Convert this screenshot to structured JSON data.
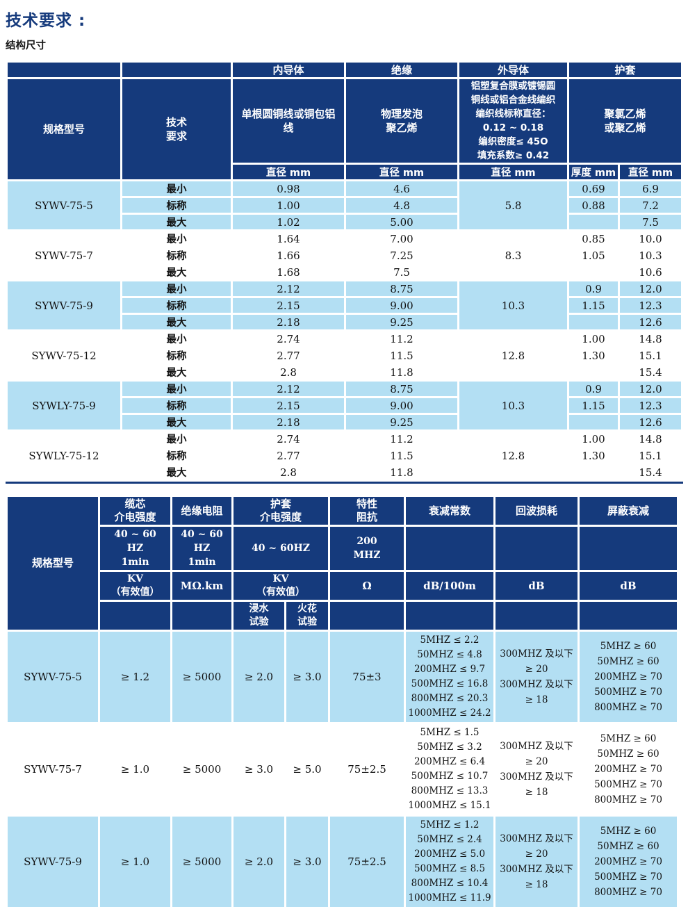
{
  "page": {
    "title": "技术要求 :",
    "subtitle": "结构尺寸"
  },
  "colors": {
    "navy": "#153a7c",
    "light_blue": "#b3dff3",
    "page_bg": "#ffffff"
  },
  "table1": {
    "header": {
      "spec_label": "规格型号",
      "tech_label": [
        "技术",
        "要求"
      ],
      "groups": [
        "内导体",
        "绝缘",
        "外导体",
        "护套"
      ],
      "inner_desc": [
        "单根圆铜线或铜包铝",
        "线"
      ],
      "insulation_desc": [
        "物理发泡",
        "聚乙烯"
      ],
      "outer_desc": [
        "铝塑复合膜或镀锡圆",
        "铜线或铝合金线编织",
        "编织线标称直径：",
        "0.12 ~ 0.18",
        "编织密度≤ 45O",
        "填充系数≥ 0.42"
      ],
      "sheath_desc": [
        "聚氯乙烯",
        "或聚乙烯"
      ],
      "units": {
        "inner": "直径 mm",
        "insulation": "直径 mm",
        "outer": "直径 mm",
        "thickness": "厚度 mm",
        "diameter": "直径 mm"
      }
    },
    "rows": [
      {
        "model": "SYWV-75-5",
        "shade": true,
        "outer": "5.8",
        "subrows": [
          {
            "label": "最小",
            "inner": "0.98",
            "ins": "4.6",
            "thick": "0.69",
            "dia": "6.9"
          },
          {
            "label": "标称",
            "inner": "1.00",
            "ins": "4.8",
            "thick": "0.88",
            "dia": "7.2"
          },
          {
            "label": "最大",
            "inner": "1.02",
            "ins": "5.00",
            "thick": "",
            "dia": "7.5"
          }
        ]
      },
      {
        "model": "SYWV-75-7",
        "shade": false,
        "outer": "8.3",
        "subrows": [
          {
            "label": "最小",
            "inner": "1.64",
            "ins": "7.00",
            "thick": "0.85",
            "dia": "10.0"
          },
          {
            "label": "标称",
            "inner": "1.66",
            "ins": "7.25",
            "thick": "1.05",
            "dia": "10.3"
          },
          {
            "label": "最大",
            "inner": "1.68",
            "ins": "7.5",
            "thick": "",
            "dia": "10.6"
          }
        ]
      },
      {
        "model": "SYWV-75-9",
        "shade": true,
        "outer": "10.3",
        "subrows": [
          {
            "label": "最小",
            "inner": "2.12",
            "ins": "8.75",
            "thick": "0.9",
            "dia": "12.0"
          },
          {
            "label": "标称",
            "inner": "2.15",
            "ins": "9.00",
            "thick": "1.15",
            "dia": "12.3"
          },
          {
            "label": "最大",
            "inner": "2.18",
            "ins": "9.25",
            "thick": "",
            "dia": "12.6"
          }
        ]
      },
      {
        "model": "SYWV-75-12",
        "shade": false,
        "outer": "12.8",
        "subrows": [
          {
            "label": "最小",
            "inner": "2.74",
            "ins": "11.2",
            "thick": "1.00",
            "dia": "14.8"
          },
          {
            "label": "标称",
            "inner": "2.77",
            "ins": "11.5",
            "thick": "1.30",
            "dia": "15.1"
          },
          {
            "label": "最大",
            "inner": "2.8",
            "ins": "11.8",
            "thick": "",
            "dia": "15.4"
          }
        ]
      },
      {
        "model": "SYWLY-75-9",
        "shade": true,
        "outer": "10.3",
        "subrows": [
          {
            "label": "最小",
            "inner": "2.12",
            "ins": "8.75",
            "thick": "0.9",
            "dia": "12.0"
          },
          {
            "label": "标称",
            "inner": "2.15",
            "ins": "9.00",
            "thick": "1.15",
            "dia": "12.3"
          },
          {
            "label": "最大",
            "inner": "2.18",
            "ins": "9.25",
            "thick": "",
            "dia": "12.6"
          }
        ]
      },
      {
        "model": "SYWLY-75-12",
        "shade": false,
        "outer": "12.8",
        "subrows": [
          {
            "label": "最小",
            "inner": "2.74",
            "ins": "11.2",
            "thick": "1.00",
            "dia": "14.8"
          },
          {
            "label": "标称",
            "inner": "2.77",
            "ins": "11.5",
            "thick": "1.30",
            "dia": "15.1"
          },
          {
            "label": "最大",
            "inner": "2.8",
            "ins": "11.8",
            "thick": "",
            "dia": "15.4"
          }
        ]
      }
    ]
  },
  "table2": {
    "header": {
      "spec_label": "规格型号",
      "core_strength": {
        "l1": [
          "缆芯",
          "介电强度"
        ],
        "l2": [
          "40 ~ 60",
          "HZ",
          "1min"
        ],
        "l3": [
          "KV",
          "（有效值）"
        ]
      },
      "ins_resistance": {
        "l1": "绝缘电阻",
        "l2": [
          "40 ~ 60",
          "HZ",
          "1min"
        ],
        "l3": "MΩ.km"
      },
      "sheath_strength": {
        "l1": [
          "护套",
          "介电强度"
        ],
        "l2": "40 ~ 60HZ",
        "l3": [
          "KV",
          "（有效值）"
        ],
        "sub_immersion": [
          "浸水",
          "试验"
        ],
        "sub_spark": [
          "火花",
          "试验"
        ]
      },
      "impedance": {
        "l1": [
          "特性",
          "阻抗"
        ],
        "l2": [
          "200",
          "MHZ"
        ],
        "l3": "Ω"
      },
      "attenuation": {
        "l1": "衰减常数",
        "l3": "dB/100m"
      },
      "return_loss": {
        "l1": "回波损耗",
        "l3": "dB"
      },
      "shield": {
        "l1": "屏蔽衰减",
        "l3": "dB"
      }
    },
    "rows": [
      {
        "model": "SYWV-75-5",
        "shade": true,
        "core": "≥ 1.2",
        "ir": "≥ 5000",
        "water": "≥ 2.0",
        "spark": "≥ 3.0",
        "z": "75±3",
        "att": [
          "5MHZ ≤ 2.2",
          "50MHZ ≤ 4.8",
          "200MHZ ≤ 9.7",
          "500MHZ ≤ 16.8",
          "800MHZ ≤ 20.3",
          "1000MHZ ≤ 24.2"
        ],
        "rl": [
          "300MHZ 及以下",
          "≥ 20",
          "300MHZ 及以下",
          "≥ 18"
        ],
        "shield": [
          "5MHZ ≥ 60",
          "50MHZ ≥ 60",
          "200MHZ ≥ 70",
          "500MHZ ≥ 70",
          "800MHZ ≥ 70"
        ]
      },
      {
        "model": "SYWV-75-7",
        "shade": false,
        "core": "≥ 1.0",
        "ir": "≥ 5000",
        "water": "≥ 3.0",
        "spark": "≥ 5.0",
        "z": "75±2.5",
        "att": [
          "5MHZ ≤ 1.5",
          "50MHZ ≤ 3.2",
          "200MHZ ≤ 6.4",
          "500MHZ ≤ 10.7",
          "800MHZ ≤ 13.3",
          "1000MHZ ≤ 15.1"
        ],
        "rl": [
          "300MHZ 及以下",
          "≥ 20",
          "300MHZ 及以下",
          "≥ 18"
        ],
        "shield": [
          "5MHZ ≥ 60",
          "50MHZ ≥ 60",
          "200MHZ ≥ 70",
          "500MHZ ≥ 70",
          "800MHZ ≥ 70"
        ]
      },
      {
        "model": "SYWV-75-9",
        "shade": true,
        "core": "≥ 1.0",
        "ir": "≥ 5000",
        "water": "≥ 2.0",
        "spark": "≥ 3.0",
        "z": "75±2.5",
        "att": [
          "5MHZ ≤ 1.2",
          "50MHZ ≤ 2.4",
          "200MHZ ≤ 5.0",
          "500MHZ ≤ 8.5",
          "800MHZ ≤ 10.4",
          "1000MHZ ≤ 11.9"
        ],
        "rl": [
          "300MHZ 及以下",
          "≥ 20",
          "300MHZ 及以下",
          "≥ 18"
        ],
        "shield": [
          "5MHZ ≥ 60",
          "50MHZ ≥ 60",
          "200MHZ ≥ 70",
          "500MHZ ≥ 70",
          "800MHZ ≥ 70"
        ]
      }
    ]
  }
}
